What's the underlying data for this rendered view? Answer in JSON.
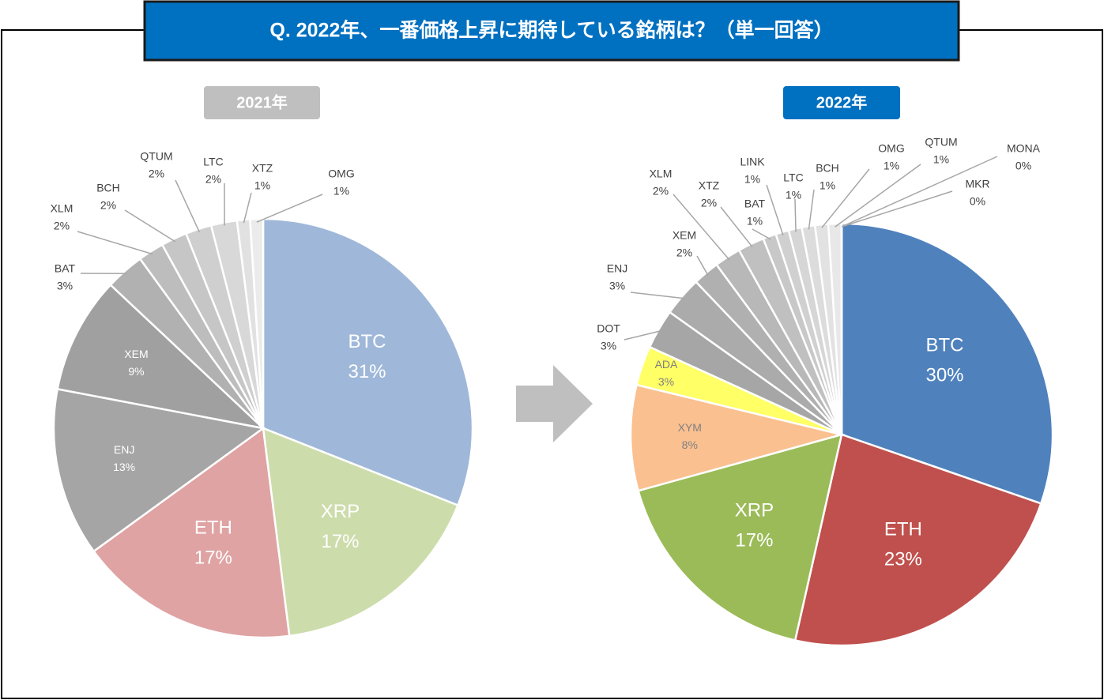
{
  "title": "Q. 2022年、一番価格上昇に期待している銘柄は？（単一回答）",
  "chart_data": [
    {
      "type": "pie",
      "title": "2021年",
      "categories": [
        "BTC",
        "XRP",
        "ETH",
        "ENJ",
        "XEM",
        "BAT",
        "XLM",
        "BCH",
        "QTUM",
        "LTC",
        "XTZ",
        "OMG"
      ],
      "values": [
        31,
        17,
        17,
        13,
        9,
        3,
        2,
        2,
        2,
        2,
        1,
        1
      ],
      "value_labels": [
        "31%",
        "17%",
        "17%",
        "13%",
        "9%",
        "3%",
        "2%",
        "2%",
        "2%",
        "2%",
        "1%",
        "1%"
      ],
      "colors": [
        "#9fb8d9",
        "#cddcab",
        "#dfa3a3",
        "#a5a5a5",
        "#a0a0a0",
        "#b1b1b1",
        "#bdbdbd",
        "#c6c6c6",
        "#cfcfcf",
        "#d8d8d8",
        "#e1e1e1",
        "#ebebeb"
      ]
    },
    {
      "type": "pie",
      "title": "2022年",
      "categories": [
        "BTC",
        "ETH",
        "XRP",
        "XYM",
        "ADA",
        "DOT",
        "ENJ",
        "XEM",
        "XLM",
        "XTZ",
        "BAT",
        "LINK",
        "LTC",
        "BCH",
        "OMG",
        "QTUM",
        "MONA",
        "MKR"
      ],
      "values": [
        30,
        23,
        17,
        8,
        3,
        3,
        3,
        2,
        2,
        2,
        1,
        1,
        1,
        1,
        1,
        1,
        0,
        0
      ],
      "value_labels": [
        "30%",
        "23%",
        "17%",
        "8%",
        "3%",
        "3%",
        "3%",
        "2%",
        "2%",
        "2%",
        "1%",
        "1%",
        "1%",
        "1%",
        "1%",
        "1%",
        "0%",
        "0%"
      ],
      "colors": [
        "#4f81bd",
        "#c0504d",
        "#9bbb59",
        "#fac090",
        "#ffff66",
        "#a6a6a6",
        "#ababab",
        "#b0b0b0",
        "#b8b8b8",
        "#c0c0c0",
        "#c8c8c8",
        "#d0d0d0",
        "#d6d6d6",
        "#dcdcdc",
        "#e2e2e2",
        "#e8e8e8",
        "#eeeeee",
        "#f2f2f2"
      ]
    }
  ]
}
